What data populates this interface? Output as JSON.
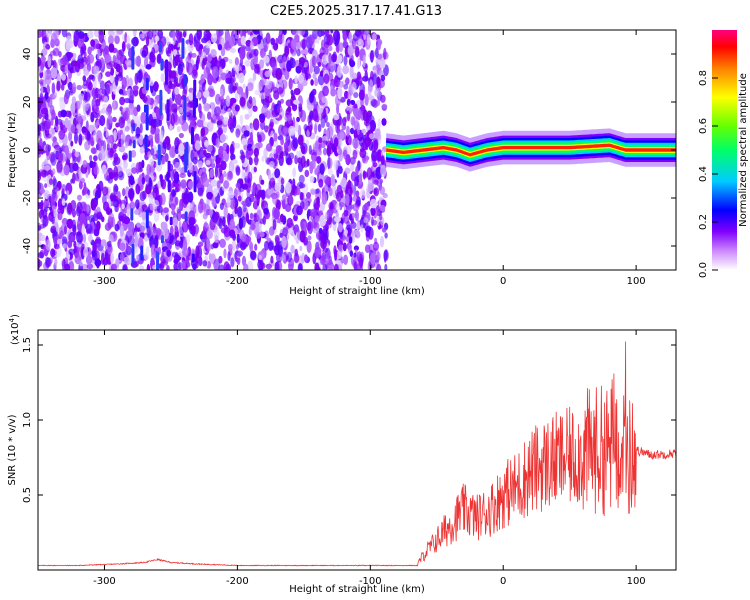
{
  "title": "C2E5.2025.317.17.41.G13",
  "chart_data": [
    {
      "type": "heatmap",
      "title": "C2E5.2025.317.17.41.G13",
      "xlabel": "Height of straight line (km)",
      "ylabel": "Frequency (Hz)",
      "xlim": [
        -350,
        130
      ],
      "ylim": [
        -50,
        50
      ],
      "x_ticks": [
        -300,
        -200,
        -100,
        0,
        100
      ],
      "x_tick_labels": [
        "-300",
        "-200",
        "-100",
        "0",
        "100"
      ],
      "y_ticks": [
        -40,
        -20,
        0,
        20,
        40
      ],
      "y_tick_labels": [
        "-40",
        "-20",
        "0",
        "20",
        "40"
      ],
      "noise_region_x": [
        -350,
        -88
      ],
      "signal_region_x": [
        -88,
        130
      ],
      "ridge_frequency_hz": 0,
      "ridge_offsets": [
        {
          "x": -88,
          "freq": 0
        },
        {
          "x": -75,
          "freq": -1
        },
        {
          "x": -60,
          "freq": 0
        },
        {
          "x": -45,
          "freq": 1
        },
        {
          "x": -35,
          "freq": 0
        },
        {
          "x": -25,
          "freq": -2
        },
        {
          "x": -12,
          "freq": 0
        },
        {
          "x": 0,
          "freq": 1
        },
        {
          "x": 50,
          "freq": 1
        },
        {
          "x": 80,
          "freq": 2
        },
        {
          "x": 92,
          "freq": 0
        },
        {
          "x": 130,
          "freq": 0
        }
      ],
      "colorbar": {
        "label": "Normalized spectral amplitude",
        "range": [
          0,
          1
        ],
        "ticks": [
          0.0,
          0.2,
          0.4,
          0.6,
          0.8
        ],
        "tick_labels": [
          "0.0",
          "0.2",
          "0.4",
          "0.6",
          "0.8"
        ],
        "colors": [
          "#ffffff",
          "#8000ff",
          "#0000ff",
          "#00ffff",
          "#00ff00",
          "#ffff00",
          "#ff8000",
          "#ff0000",
          "#ff0080"
        ]
      }
    },
    {
      "type": "line",
      "xlabel": "Height of straight line (km)",
      "ylabel": "SNR (10 * v/v)",
      "y_multiplier": "(x10",
      "y_multiplier_exp": "4",
      "y_multiplier_close": ")",
      "xlim": [
        -350,
        130
      ],
      "ylim": [
        0,
        16000
      ],
      "x_ticks": [
        -300,
        -200,
        -100,
        0,
        100
      ],
      "x_tick_labels": [
        "-300",
        "-200",
        "-100",
        "0",
        "100"
      ],
      "y_ticks": [
        5000,
        10000,
        15000
      ],
      "y_tick_labels": [
        "0.5",
        "1.0",
        "1.5"
      ],
      "series": [
        {
          "name": "SNR",
          "color": "#ee3333",
          "x": [
            -350,
            -320,
            -290,
            -270,
            -260,
            -250,
            -230,
            -200,
            -150,
            -100,
            -80,
            -65,
            -60,
            -50,
            -40,
            -30,
            -20,
            -10,
            0,
            10,
            20,
            30,
            40,
            50,
            60,
            70,
            80,
            85,
            90,
            95,
            100,
            110,
            120,
            130
          ],
          "y": [
            300,
            300,
            400,
            500,
            700,
            500,
            400,
            300,
            300,
            300,
            300,
            300,
            1000,
            2000,
            3000,
            4000,
            3500,
            4000,
            5000,
            5500,
            6500,
            7000,
            7300,
            7500,
            7800,
            8000,
            8000,
            9000,
            8500,
            7500,
            8000,
            7700,
            7700,
            7800
          ]
        }
      ]
    }
  ]
}
